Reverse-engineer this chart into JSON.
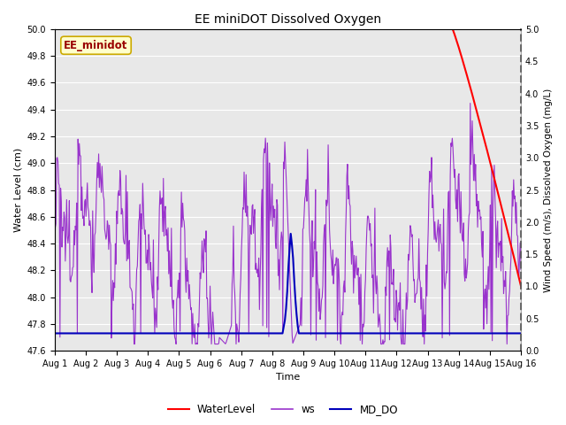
{
  "title": "EE miniDOT Dissolved Oxygen",
  "xlabel": "Time",
  "ylabel_left": "Water Level (cm)",
  "ylabel_right": "Wind Speed (m/s), Dissolved Oxygen (mg/L)",
  "ylim_left": [
    47.6,
    50.0
  ],
  "ylim_right": [
    0.0,
    5.0
  ],
  "x_start": 0,
  "x_end": 15,
  "x_ticks": [
    0,
    1,
    2,
    3,
    4,
    5,
    6,
    7,
    8,
    9,
    10,
    11,
    12,
    13,
    14,
    15
  ],
  "x_tick_labels": [
    "Aug 1",
    "Aug 2",
    "Aug 3",
    "Aug 4",
    "Aug 5",
    "Aug 6",
    "Aug 7",
    "Aug 8",
    "Aug 9",
    "Aug 10",
    "Aug 11",
    "Aug 12",
    "Aug 13",
    "Aug 14",
    "Aug 15",
    "Aug 16"
  ],
  "legend_label_box": "EE_minidot",
  "legend_entries": [
    "WaterLevel",
    "ws",
    "MD_DO"
  ],
  "legend_colors_hex": [
    "#ff0000",
    "#9933cc",
    "#0000bb"
  ],
  "fig_bg": "#ffffff",
  "plot_bg": "#e8e8e8",
  "grid_color": "#ffffff",
  "ws_color": "#9933cc",
  "wl_color": "#ff0000",
  "do_color": "#0000bb",
  "box_facecolor": "#ffffcc",
  "box_edgecolor": "#ccaa00",
  "box_textcolor": "#990000"
}
